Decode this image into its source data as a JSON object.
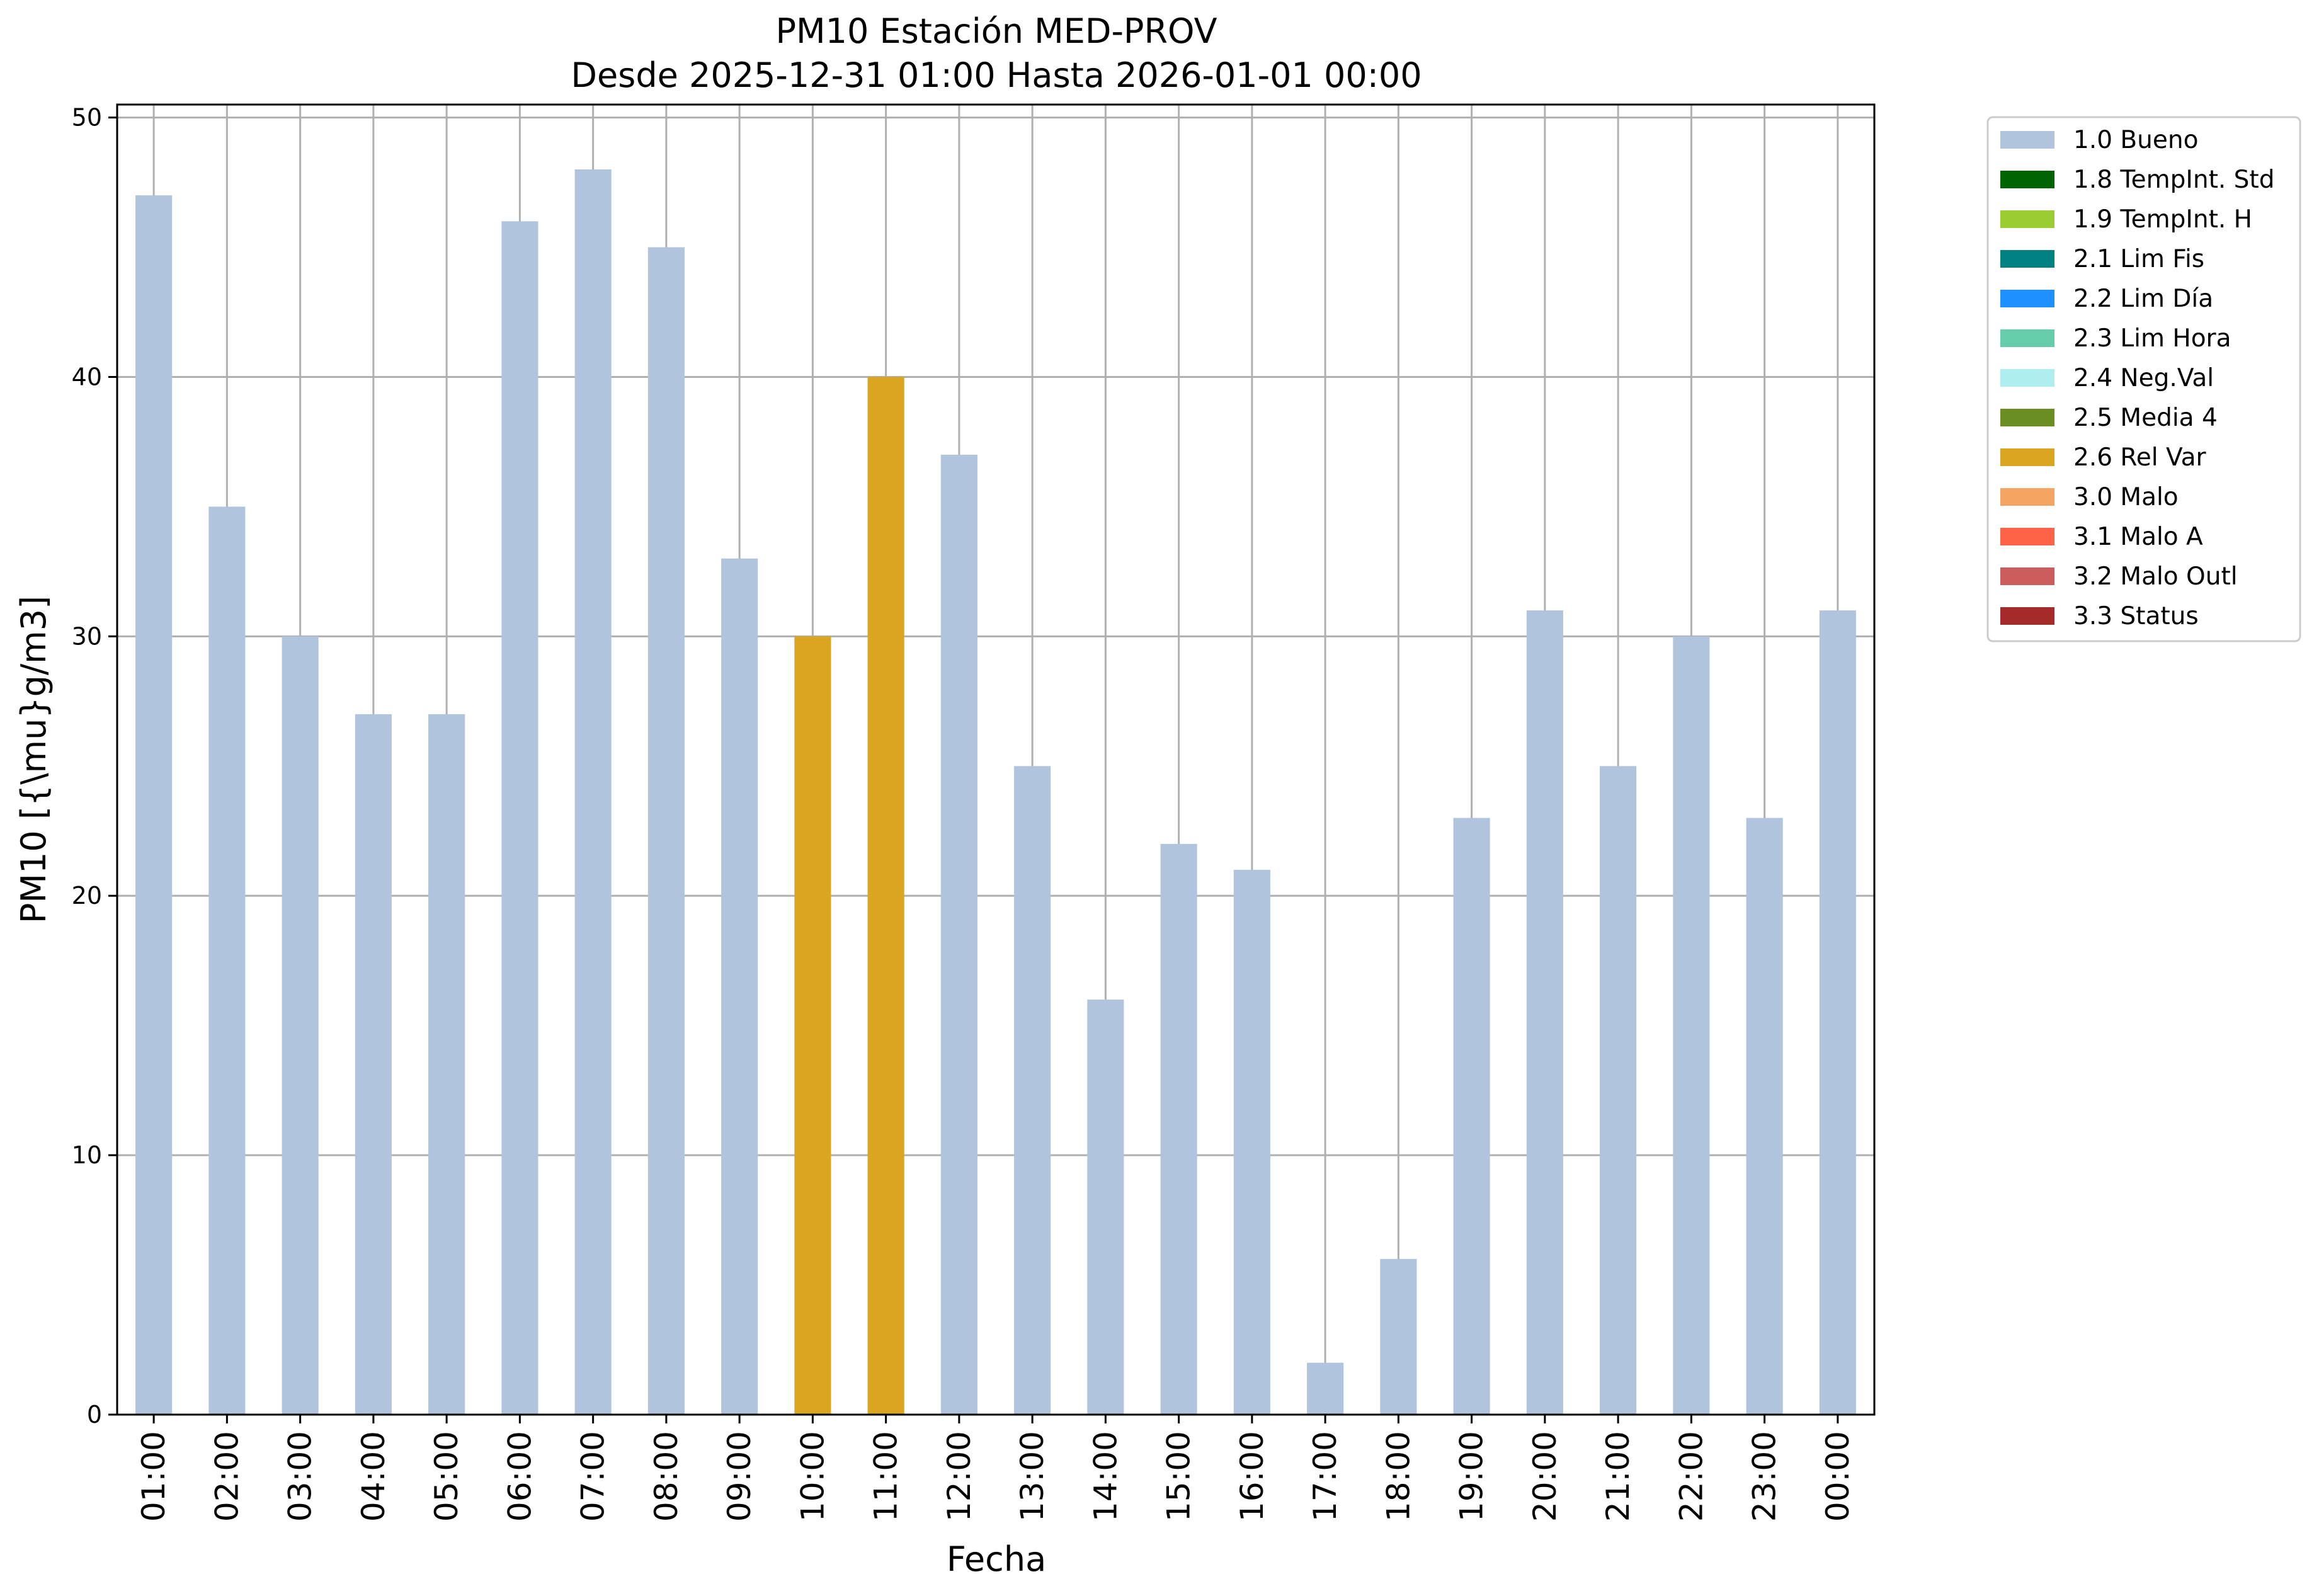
{
  "chart_data": {
    "type": "bar",
    "title": "PM10 Estación MED-PROV",
    "subtitle": "Desde 2025-12-31 01:00 Hasta 2026-01-01 00:00",
    "xlabel": "Fecha",
    "ylabel": "PM10 [{\\mu}g/m3]",
    "ylim": [
      0,
      50.5
    ],
    "yticks": [
      0,
      10,
      20,
      30,
      40,
      50
    ],
    "grid": true,
    "legend_position": "outside-top-right",
    "categories": [
      "01:00",
      "02:00",
      "03:00",
      "04:00",
      "05:00",
      "06:00",
      "07:00",
      "08:00",
      "09:00",
      "10:00",
      "11:00",
      "12:00",
      "13:00",
      "14:00",
      "15:00",
      "16:00",
      "17:00",
      "18:00",
      "19:00",
      "20:00",
      "21:00",
      "22:00",
      "23:00",
      "00:00"
    ],
    "values": [
      47,
      35,
      30,
      27,
      27,
      46,
      48,
      45,
      33,
      30,
      40,
      37,
      25,
      16,
      22,
      21,
      2,
      6,
      23,
      31,
      25,
      30,
      23,
      31
    ],
    "flags": [
      "1.0 Bueno",
      "1.0 Bueno",
      "1.0 Bueno",
      "1.0 Bueno",
      "1.0 Bueno",
      "1.0 Bueno",
      "1.0 Bueno",
      "1.0 Bueno",
      "1.0 Bueno",
      "2.6 Rel Var",
      "2.6 Rel Var",
      "1.0 Bueno",
      "1.0 Bueno",
      "1.0 Bueno",
      "1.0 Bueno",
      "1.0 Bueno",
      "1.0 Bueno",
      "1.0 Bueno",
      "1.0 Bueno",
      "1.0 Bueno",
      "1.0 Bueno",
      "1.0 Bueno",
      "1.0 Bueno",
      "1.0 Bueno"
    ],
    "legend": [
      {
        "label": "1.0 Bueno",
        "color": "#b0c4de"
      },
      {
        "label": "1.8 TempInt. Std",
        "color": "#006400"
      },
      {
        "label": "1.9 TempInt. H",
        "color": "#9acd32"
      },
      {
        "label": "2.1 Lim Fis",
        "color": "#008080"
      },
      {
        "label": "2.2 Lim Día",
        "color": "#1e90ff"
      },
      {
        "label": "2.3 Lim Hora",
        "color": "#66cdaa"
      },
      {
        "label": "2.4 Neg.Val",
        "color": "#afeeee"
      },
      {
        "label": "2.5 Media 4",
        "color": "#6b8e23"
      },
      {
        "label": "2.6 Rel Var",
        "color": "#daa520"
      },
      {
        "label": "3.0 Malo",
        "color": "#f4a460"
      },
      {
        "label": "3.1 Malo A",
        "color": "#ff6347"
      },
      {
        "label": "3.2 Malo Outl",
        "color": "#cd5c5c"
      },
      {
        "label": "3.3 Status",
        "color": "#a52a2a"
      }
    ]
  }
}
